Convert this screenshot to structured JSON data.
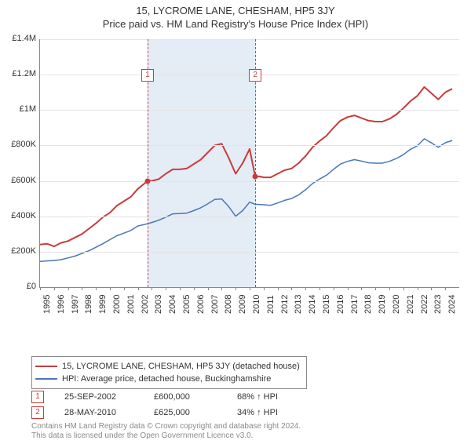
{
  "title": "15, LYCROME LANE, CHESHAM, HP5 3JY",
  "subtitle": "Price paid vs. HM Land Registry's House Price Index (HPI)",
  "chart": {
    "type": "line",
    "background_color": "#ffffff",
    "grid_color": "#e4e4e4",
    "axis_color": "#888888",
    "label_fontsize": 11,
    "title_fontsize": 13,
    "x": {
      "min": 1995,
      "max": 2025,
      "ticks": [
        1995,
        1996,
        1997,
        1998,
        1999,
        2000,
        2001,
        2002,
        2003,
        2004,
        2005,
        2006,
        2007,
        2008,
        2009,
        2010,
        2011,
        2012,
        2013,
        2014,
        2015,
        2016,
        2017,
        2018,
        2019,
        2020,
        2021,
        2022,
        2023,
        2024
      ],
      "tick_labels": [
        "1995",
        "1996",
        "1997",
        "1998",
        "1999",
        "2000",
        "2001",
        "2002",
        "2003",
        "2004",
        "2005",
        "2006",
        "2007",
        "2008",
        "2009",
        "2010",
        "2011",
        "2012",
        "2013",
        "2014",
        "2015",
        "2016",
        "2017",
        "2018",
        "2019",
        "2020",
        "2021",
        "2022",
        "2023",
        "2024"
      ]
    },
    "y": {
      "min": 0,
      "max": 1400000,
      "ticks": [
        0,
        200000,
        400000,
        600000,
        800000,
        1000000,
        1200000,
        1400000
      ],
      "tick_labels": [
        "£0",
        "£200K",
        "£400K",
        "£600K",
        "£800K",
        "£1M",
        "£1.2M",
        "£1.4M"
      ]
    },
    "shading": {
      "color": "#e4ecf6",
      "bands": [
        {
          "from": 2002.7,
          "to": 2003.0
        },
        {
          "from": 2003.0,
          "to": 2010.4
        }
      ]
    },
    "markers": [
      {
        "id": "1",
        "x": 2002.7,
        "y": 600000,
        "label_y": 1.0
      },
      {
        "id": "2",
        "x": 2010.4,
        "y": 625000,
        "label_y": 1.0
      }
    ],
    "series": [
      {
        "name": "15, LYCROME LANE, CHESHAM, HP5 3JY (detached house)",
        "color": "#c93b3b",
        "line_width": 2,
        "points": [
          [
            1995,
            240000
          ],
          [
            1995.5,
            245000
          ],
          [
            1996,
            230000
          ],
          [
            1996.5,
            250000
          ],
          [
            1997,
            260000
          ],
          [
            1997.5,
            280000
          ],
          [
            1998,
            300000
          ],
          [
            1998.5,
            330000
          ],
          [
            1999,
            360000
          ],
          [
            1999.5,
            395000
          ],
          [
            2000,
            420000
          ],
          [
            2000.5,
            460000
          ],
          [
            2001,
            485000
          ],
          [
            2001.5,
            510000
          ],
          [
            2002,
            555000
          ],
          [
            2002.7,
            600000
          ],
          [
            2003,
            600000
          ],
          [
            2003.5,
            610000
          ],
          [
            2004,
            640000
          ],
          [
            2004.5,
            665000
          ],
          [
            2005,
            665000
          ],
          [
            2005.5,
            670000
          ],
          [
            2006,
            695000
          ],
          [
            2006.5,
            720000
          ],
          [
            2007,
            760000
          ],
          [
            2007.5,
            800000
          ],
          [
            2008,
            810000
          ],
          [
            2008.5,
            730000
          ],
          [
            2009,
            640000
          ],
          [
            2009.5,
            700000
          ],
          [
            2010,
            780000
          ],
          [
            2010.4,
            625000
          ],
          [
            2010.7,
            625000
          ],
          [
            2011,
            620000
          ],
          [
            2011.5,
            620000
          ],
          [
            2012,
            640000
          ],
          [
            2012.5,
            660000
          ],
          [
            2013,
            670000
          ],
          [
            2013.5,
            700000
          ],
          [
            2014,
            740000
          ],
          [
            2014.5,
            790000
          ],
          [
            2015,
            825000
          ],
          [
            2015.5,
            855000
          ],
          [
            2016,
            900000
          ],
          [
            2016.5,
            940000
          ],
          [
            2017,
            960000
          ],
          [
            2017.5,
            970000
          ],
          [
            2018,
            955000
          ],
          [
            2018.5,
            940000
          ],
          [
            2019,
            935000
          ],
          [
            2019.5,
            935000
          ],
          [
            2020,
            950000
          ],
          [
            2020.5,
            975000
          ],
          [
            2021,
            1010000
          ],
          [
            2021.5,
            1050000
          ],
          [
            2022,
            1080000
          ],
          [
            2022.5,
            1130000
          ],
          [
            2023,
            1095000
          ],
          [
            2023.5,
            1060000
          ],
          [
            2024,
            1100000
          ],
          [
            2024.5,
            1120000
          ]
        ]
      },
      {
        "name": "HPI: Average price, detached house, Buckinghamshire",
        "color": "#4a76b8",
        "line_width": 1.5,
        "points": [
          [
            1995,
            145000
          ],
          [
            1995.5,
            148000
          ],
          [
            1996,
            150000
          ],
          [
            1996.5,
            155000
          ],
          [
            1997,
            165000
          ],
          [
            1997.5,
            175000
          ],
          [
            1998,
            190000
          ],
          [
            1998.5,
            205000
          ],
          [
            1999,
            225000
          ],
          [
            1999.5,
            245000
          ],
          [
            2000,
            268000
          ],
          [
            2000.5,
            290000
          ],
          [
            2001,
            305000
          ],
          [
            2001.5,
            320000
          ],
          [
            2002,
            345000
          ],
          [
            2002.7,
            358000
          ],
          [
            2003,
            365000
          ],
          [
            2003.5,
            378000
          ],
          [
            2004,
            395000
          ],
          [
            2004.5,
            414000
          ],
          [
            2005,
            415000
          ],
          [
            2005.5,
            418000
          ],
          [
            2006,
            432000
          ],
          [
            2006.5,
            448000
          ],
          [
            2007,
            470000
          ],
          [
            2007.5,
            495000
          ],
          [
            2008,
            498000
          ],
          [
            2008.5,
            455000
          ],
          [
            2009,
            400000
          ],
          [
            2009.5,
            432000
          ],
          [
            2010,
            480000
          ],
          [
            2010.4,
            468000
          ],
          [
            2011,
            465000
          ],
          [
            2011.5,
            462000
          ],
          [
            2012,
            475000
          ],
          [
            2012.5,
            490000
          ],
          [
            2013,
            500000
          ],
          [
            2013.5,
            520000
          ],
          [
            2014,
            550000
          ],
          [
            2014.5,
            585000
          ],
          [
            2015,
            610000
          ],
          [
            2015.5,
            632000
          ],
          [
            2016,
            665000
          ],
          [
            2016.5,
            695000
          ],
          [
            2017,
            710000
          ],
          [
            2017.5,
            720000
          ],
          [
            2018,
            712000
          ],
          [
            2018.5,
            702000
          ],
          [
            2019,
            700000
          ],
          [
            2019.5,
            700000
          ],
          [
            2020,
            710000
          ],
          [
            2020.5,
            726000
          ],
          [
            2021,
            748000
          ],
          [
            2021.5,
            778000
          ],
          [
            2022,
            798000
          ],
          [
            2022.5,
            838000
          ],
          [
            2023,
            815000
          ],
          [
            2023.5,
            790000
          ],
          [
            2024,
            815000
          ],
          [
            2024.5,
            828000
          ]
        ]
      }
    ]
  },
  "legend": {
    "items": [
      {
        "color": "#c93b3b",
        "label": "15, LYCROME LANE, CHESHAM, HP5 3JY (detached house)"
      },
      {
        "color": "#4a76b8",
        "label": "HPI: Average price, detached house, Buckinghamshire"
      }
    ]
  },
  "transactions": [
    {
      "id": "1",
      "date": "25-SEP-2002",
      "price": "£600,000",
      "pct": "68% ↑ HPI"
    },
    {
      "id": "2",
      "date": "28-MAY-2010",
      "price": "£625,000",
      "pct": "34% ↑ HPI"
    }
  ],
  "footer": {
    "line1": "Contains HM Land Registry data © Crown copyright and database right 2024.",
    "line2": "This data is licensed under the Open Government Licence v3.0."
  }
}
